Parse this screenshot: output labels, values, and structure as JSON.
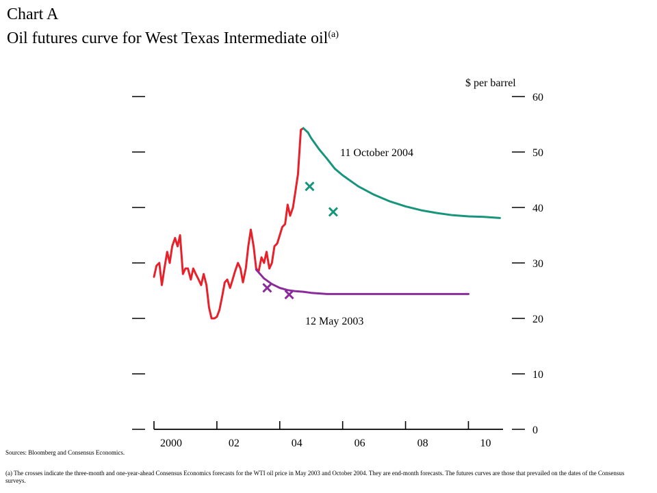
{
  "title": {
    "label": "Chart A",
    "main": "Oil futures curve for West Texas Intermediate oil",
    "superscript": "(a)"
  },
  "sources": "Sources: Bloomberg and Consensus Economics.",
  "footnote": "(a) The crosses indicate the three-month and one-year-ahead Consensus Economics forecasts for the WTI oil price in May 2003 and October 2004. They are end-month forecasts. The futures curves are those that prevailed on the dates of the Consensus surveys.",
  "chart_data": {
    "type": "line",
    "title": "Oil futures curve for West Texas Intermediate oil",
    "ylabel": "$ per barrel",
    "ylim": [
      0,
      60
    ],
    "yticks": [
      0,
      10,
      20,
      30,
      40,
      50,
      60
    ],
    "xlim": [
      2000.0,
      2011.1
    ],
    "xticks": [
      2000,
      2002,
      2004,
      2006,
      2008,
      2010
    ],
    "xtick_labels": [
      "2000",
      "02",
      "04",
      "06",
      "08",
      "10"
    ],
    "grid": false,
    "colors": {
      "spot": "#e8202a",
      "oct2004": "#17957c",
      "may2003": "#8a2b9a"
    },
    "series": [
      {
        "key": "spot",
        "points": [
          [
            2000.0,
            27.5
          ],
          [
            2000.08,
            29.5
          ],
          [
            2000.17,
            30
          ],
          [
            2000.25,
            26
          ],
          [
            2000.33,
            29
          ],
          [
            2000.42,
            32
          ],
          [
            2000.5,
            30
          ],
          [
            2000.58,
            33
          ],
          [
            2000.67,
            34.5
          ],
          [
            2000.75,
            33
          ],
          [
            2000.83,
            35
          ],
          [
            2000.92,
            28
          ],
          [
            2001.0,
            29
          ],
          [
            2001.08,
            29
          ],
          [
            2001.17,
            27
          ],
          [
            2001.25,
            29
          ],
          [
            2001.33,
            28
          ],
          [
            2001.42,
            27
          ],
          [
            2001.5,
            26
          ],
          [
            2001.58,
            28
          ],
          [
            2001.67,
            26
          ],
          [
            2001.75,
            22
          ],
          [
            2001.83,
            20
          ],
          [
            2001.92,
            20
          ],
          [
            2002.0,
            20.3
          ],
          [
            2002.08,
            21.5
          ],
          [
            2002.17,
            24
          ],
          [
            2002.25,
            26.5
          ],
          [
            2002.33,
            27
          ],
          [
            2002.42,
            25.5
          ],
          [
            2002.5,
            27
          ],
          [
            2002.58,
            28.5
          ],
          [
            2002.67,
            30
          ],
          [
            2002.75,
            29
          ],
          [
            2002.83,
            26.5
          ],
          [
            2002.92,
            29
          ],
          [
            2003.0,
            33
          ],
          [
            2003.08,
            36
          ],
          [
            2003.17,
            33
          ],
          [
            2003.25,
            29
          ],
          [
            2003.33,
            28.5
          ],
          [
            2003.42,
            31
          ],
          [
            2003.5,
            30
          ],
          [
            2003.58,
            32
          ],
          [
            2003.67,
            29
          ],
          [
            2003.75,
            30
          ],
          [
            2003.83,
            33
          ],
          [
            2003.92,
            33.5
          ],
          [
            2004.0,
            35
          ],
          [
            2004.08,
            36.5
          ],
          [
            2004.17,
            37
          ],
          [
            2004.25,
            40.5
          ],
          [
            2004.33,
            38.5
          ],
          [
            2004.42,
            40
          ],
          [
            2004.5,
            43
          ],
          [
            2004.58,
            46
          ],
          [
            2004.67,
            54
          ],
          [
            2004.75,
            54.3
          ]
        ]
      },
      {
        "key": "oct2004",
        "name": "11 October 2004",
        "points": [
          [
            2004.75,
            54.3
          ],
          [
            2004.9,
            53.5
          ],
          [
            2005.0,
            52.5
          ],
          [
            2005.25,
            50.5
          ],
          [
            2005.5,
            48.8
          ],
          [
            2005.75,
            47
          ],
          [
            2006.0,
            45.8
          ],
          [
            2006.5,
            43.8
          ],
          [
            2007.0,
            42.3
          ],
          [
            2007.5,
            41.1
          ],
          [
            2008.0,
            40.2
          ],
          [
            2008.5,
            39.5
          ],
          [
            2009.0,
            39
          ],
          [
            2009.5,
            38.6
          ],
          [
            2010.0,
            38.4
          ],
          [
            2010.5,
            38.3
          ],
          [
            2011.0,
            38.1
          ]
        ]
      },
      {
        "key": "may2003",
        "name": "12 May 2003",
        "points": [
          [
            2003.25,
            28.8
          ],
          [
            2003.5,
            27.2
          ],
          [
            2003.75,
            26.2
          ],
          [
            2004.0,
            25.5
          ],
          [
            2004.25,
            25.1
          ],
          [
            2004.5,
            24.9
          ],
          [
            2004.75,
            24.8
          ],
          [
            2005.0,
            24.6
          ],
          [
            2005.5,
            24.4
          ],
          [
            2006.0,
            24.4
          ],
          [
            2007.0,
            24.4
          ],
          [
            2008.0,
            24.4
          ],
          [
            2009.0,
            24.4
          ],
          [
            2010.0,
            24.4
          ]
        ]
      }
    ],
    "forecasts": [
      {
        "series": "oct2004",
        "x": 2004.95,
        "y": 43.8
      },
      {
        "series": "oct2004",
        "x": 2005.7,
        "y": 39.2
      },
      {
        "series": "may2003",
        "x": 2003.6,
        "y": 25.5
      },
      {
        "series": "may2003",
        "x": 2004.3,
        "y": 24.3
      }
    ],
    "annotations": [
      {
        "series": "oct2004",
        "text": "11 October 2004"
      },
      {
        "series": "may2003",
        "text": "12 May 2003"
      }
    ]
  }
}
